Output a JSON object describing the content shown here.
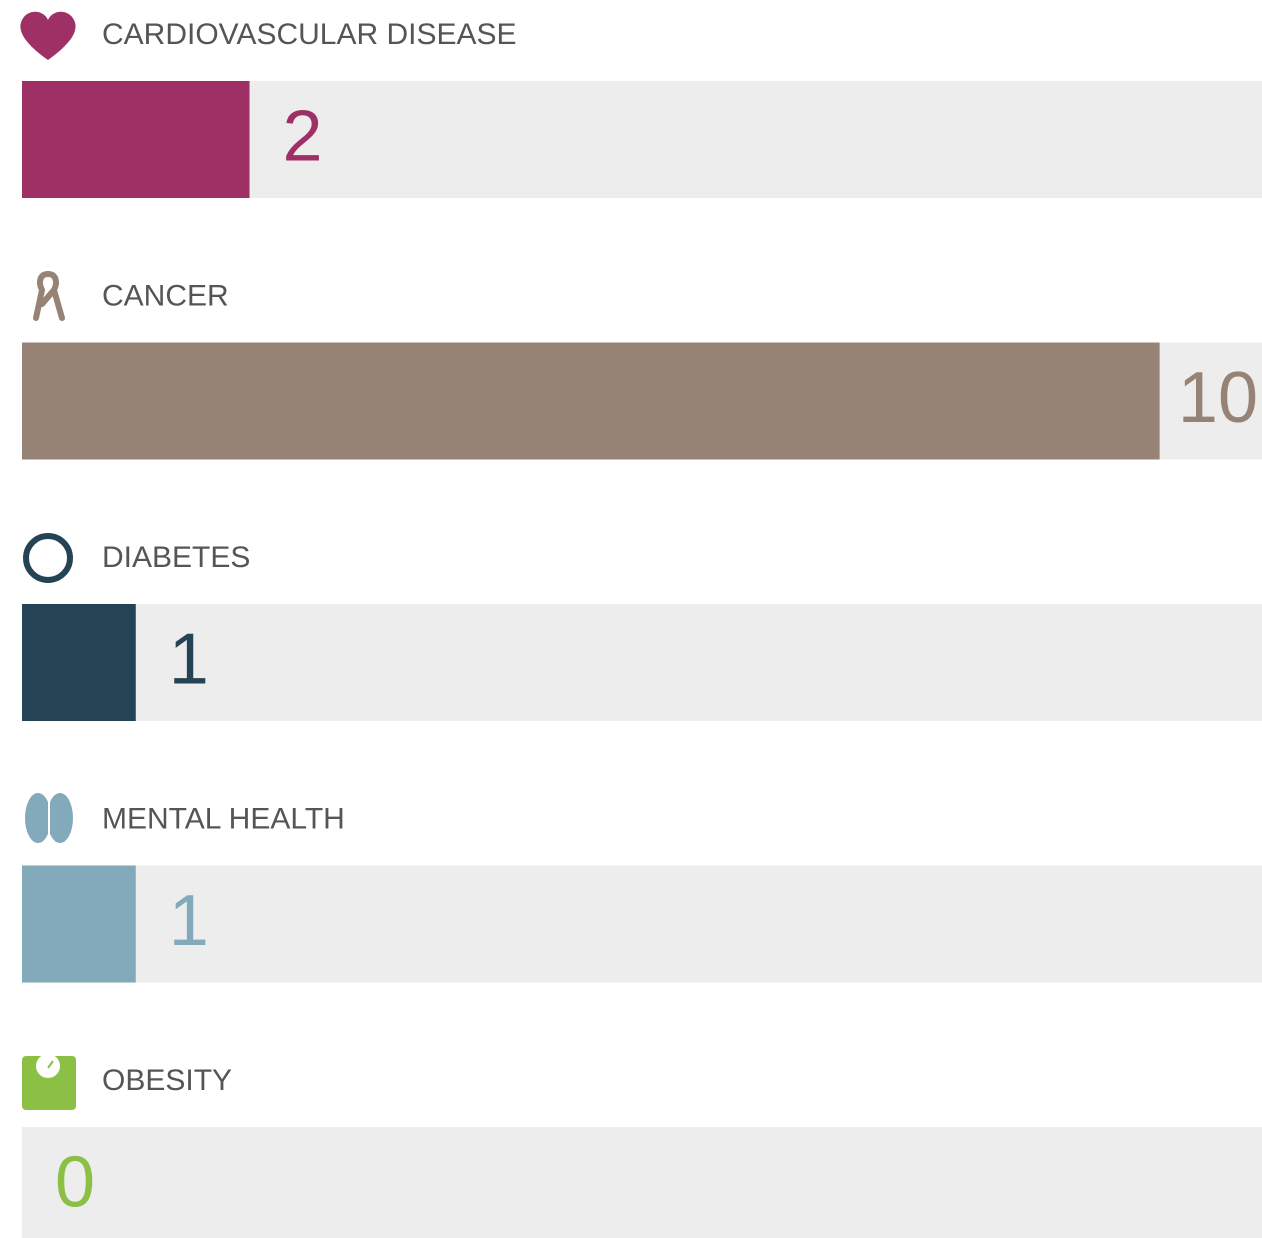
{
  "chart_data": {
    "type": "bar",
    "categories": [
      "CARDIOVASCULAR DISEASE",
      "CANCER",
      "DIABETES",
      "MENTAL HEALTH",
      "OBESITY"
    ],
    "values": [
      2,
      10,
      1,
      1,
      0
    ],
    "colors": [
      "#9e3066",
      "#978376",
      "#244354",
      "#82aabb",
      "#8bc045"
    ],
    "xlim": [
      0,
      10.9
    ]
  }
}
